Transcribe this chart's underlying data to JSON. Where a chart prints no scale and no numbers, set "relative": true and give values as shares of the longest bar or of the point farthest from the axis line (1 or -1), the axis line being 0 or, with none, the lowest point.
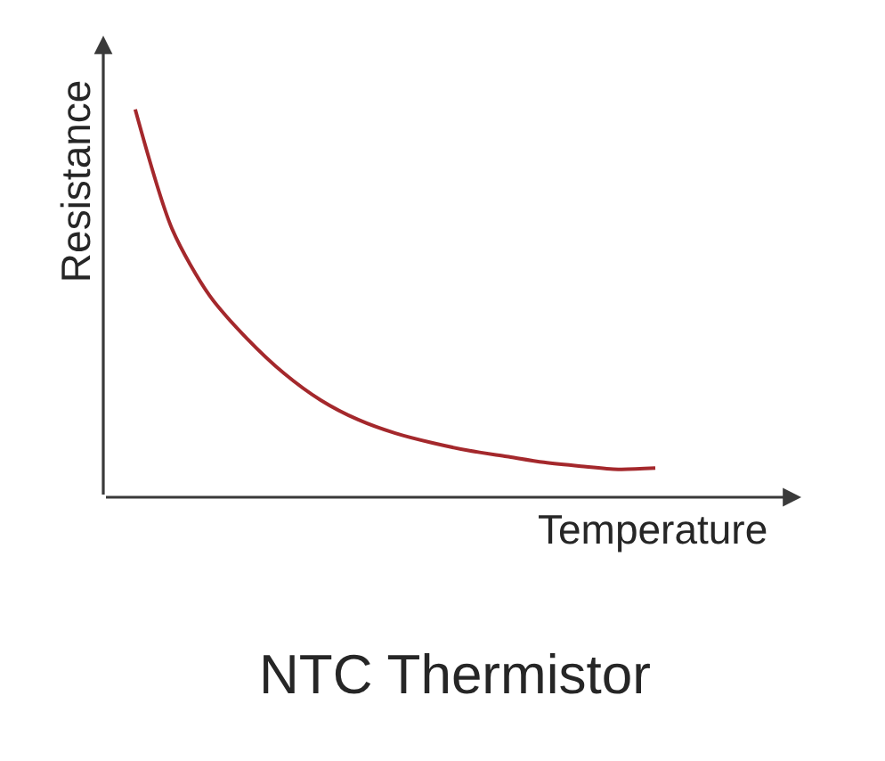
{
  "chart_data": {
    "type": "line",
    "title": "NTC Thermistor",
    "xlabel": "Temperature",
    "ylabel": "Resistance",
    "relative": true,
    "categories": [
      null,
      null,
      null,
      null,
      null,
      null,
      null,
      null,
      null,
      null,
      null,
      null,
      null,
      null,
      null
    ],
    "series": [
      {
        "color": "#a4282c",
        "values": [
          1,
          0.69,
          0.52,
          0.41,
          0.32,
          0.25,
          0.2,
          0.165,
          0.14,
          0.12,
          0.105,
          0.09,
          0.08,
          0.072,
          0.075
        ]
      }
    ]
  }
}
